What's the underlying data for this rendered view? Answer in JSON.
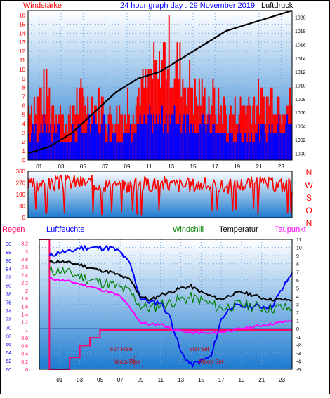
{
  "header": {
    "left_label": "Windstärke",
    "title": "24 hour graph day : 29 November 2019",
    "right_label": "Luftdruck"
  },
  "mid_labels": {
    "compass": [
      "N",
      "W",
      "S",
      "O",
      "N"
    ]
  },
  "bottom_header": {
    "regen": "Regen",
    "luftfeuchte": "Luftfeuchte",
    "windchill": "Windchill",
    "temperatur": "Temperatur",
    "taupunkt": "Taupunkt"
  },
  "x_ticks": [
    "01",
    "03",
    "05",
    "07",
    "09",
    "11",
    "13",
    "15",
    "17",
    "19",
    "21",
    "23"
  ],
  "colors": {
    "frame": "#000000",
    "wind_max": "#ff0000",
    "wind_avg": "#0000ff",
    "pressure": "#000000",
    "direction": "#ff0000",
    "rain": "#ff0066",
    "humidity": "#0000ff",
    "windchill": "#008000",
    "temperature": "#000000",
    "dewpoint": "#ff00ff",
    "header_text": "#ff0000",
    "title_text": "#0000ff",
    "event_text": "#cc0000",
    "sky_top": "#1e7bd0",
    "sky_bottom": "#ffffff"
  },
  "chart_data": [
    {
      "type": "bar",
      "title": "Windstärke / Luftdruck",
      "xlabel": "",
      "ylabel": "Windstärke",
      "y2label": "Luftdruck",
      "x_ticks": [
        "01",
        "03",
        "05",
        "07",
        "09",
        "11",
        "13",
        "15",
        "17",
        "19",
        "21",
        "23"
      ],
      "yticks": [
        "0",
        "1",
        "2",
        "3",
        "4",
        "5",
        "6",
        "7",
        "8",
        "9",
        "10",
        "11",
        "12",
        "13",
        "14",
        "15",
        "16"
      ],
      "y2ticks": [
        "1000",
        "1002",
        "1004",
        "1006",
        "1008",
        "1010",
        "1012",
        "1014",
        "1016",
        "1018",
        "1020"
      ],
      "ylim": [
        0,
        16.5
      ],
      "y2lim": [
        999,
        1021
      ],
      "series": [
        {
          "name": "Windstärke max",
          "kind": "bars",
          "x": [
            0,
            1,
            2,
            3,
            4,
            5,
            6,
            7,
            8,
            9,
            10,
            11,
            12,
            13,
            14,
            15,
            16,
            17,
            18,
            19,
            20,
            21,
            22,
            23
          ],
          "values": [
            9,
            10,
            8,
            6,
            9,
            9,
            8,
            7,
            7,
            9,
            11,
            13,
            16,
            14,
            12,
            10,
            9,
            8,
            7,
            8,
            9,
            9,
            10,
            9
          ]
        },
        {
          "name": "Windstärke mittel",
          "kind": "bars",
          "x": [
            0,
            1,
            2,
            3,
            4,
            5,
            6,
            7,
            8,
            9,
            10,
            11,
            12,
            13,
            14,
            15,
            16,
            17,
            18,
            19,
            20,
            21,
            22,
            23
          ],
          "values": [
            4,
            5,
            4,
            3,
            4,
            5,
            5,
            4,
            3,
            4,
            5,
            6,
            6,
            6,
            6,
            5,
            5,
            4,
            3,
            4,
            4,
            4,
            5,
            5
          ]
        },
        {
          "name": "Luftdruck",
          "kind": "line",
          "x": [
            0,
            2,
            4,
            6,
            8,
            10,
            12,
            14,
            16,
            18,
            20,
            22,
            24
          ],
          "values": [
            1000,
            1001,
            1003,
            1006,
            1009,
            1011,
            1012,
            1014,
            1016,
            1018,
            1019,
            1020,
            1021
          ]
        }
      ]
    },
    {
      "type": "line",
      "title": "Windrichtung",
      "yticks": [
        "0",
        "90",
        "180",
        "270",
        "360"
      ],
      "ylim": [
        0,
        360
      ],
      "series": [
        {
          "name": "Windrichtung",
          "x": [
            0,
            2,
            4,
            6,
            8,
            10,
            12,
            14,
            16,
            18,
            20,
            22,
            24
          ],
          "values": [
            250,
            260,
            280,
            270,
            240,
            260,
            270,
            250,
            260,
            240,
            270,
            260,
            250
          ]
        }
      ]
    },
    {
      "type": "line",
      "title": "Regen / Luftfeuchte / Windchill / Temperatur / Taupunkt",
      "x_ticks": [
        "01",
        "03",
        "05",
        "07",
        "09",
        "11",
        "13",
        "15",
        "17",
        "19",
        "21",
        "23"
      ],
      "y_humidity_ticks": [
        "60",
        "62",
        "64",
        "66",
        "68",
        "70",
        "72",
        "74",
        "76",
        "78",
        "80",
        "82",
        "84",
        "86",
        "88",
        "90"
      ],
      "y_rain_ticks": [
        "0",
        "0.2",
        "0.4",
        "0.6",
        "0.8",
        "1",
        "1.2",
        "1.4",
        "1.6",
        "1.8",
        "2",
        "2.2",
        "2.4",
        "2.6",
        "2.8",
        "3",
        "3.2"
      ],
      "y_temp_ticks": [
        "-5",
        "-4",
        "-3",
        "-2",
        "-1",
        "0",
        "1",
        "2",
        "3",
        "4",
        "5",
        "6",
        "7",
        "8",
        "9",
        "10",
        "11"
      ],
      "humidity_lim": [
        60,
        91
      ],
      "temp_lim": [
        -5,
        11
      ],
      "rain_lim": [
        0,
        3.3
      ],
      "series": [
        {
          "name": "Regen",
          "x": [
            -1,
            0,
            1,
            2,
            3,
            4,
            5,
            6,
            7,
            8,
            9,
            10,
            11,
            12,
            13,
            14,
            15,
            16,
            17,
            18,
            19,
            20,
            21,
            22,
            23,
            24
          ],
          "values": [
            3.3,
            0,
            0,
            0.3,
            0.6,
            0.8,
            1.0,
            1.0,
            1.0,
            1.0,
            1.0,
            1.0,
            1.0,
            1.0,
            1.0,
            1.0,
            1.0,
            1.0,
            1.0,
            1.0,
            1.0,
            1.0,
            1.0,
            1.0,
            1.0,
            1.0
          ]
        },
        {
          "name": "Luftfeuchte",
          "x": [
            0,
            1,
            2,
            3,
            4,
            5,
            6,
            7,
            8,
            9,
            10,
            11,
            12,
            13,
            14,
            15,
            16,
            17,
            18,
            19,
            20,
            21,
            22,
            23,
            24
          ],
          "values": [
            87,
            88,
            88,
            89,
            89,
            89,
            89,
            88,
            85,
            77,
            76,
            76,
            72,
            64,
            61,
            62,
            63,
            72,
            75,
            75,
            75,
            75,
            75,
            79,
            83
          ]
        },
        {
          "name": "Windchill",
          "x": [
            0,
            1,
            2,
            3,
            4,
            5,
            6,
            7,
            8,
            9,
            10,
            11,
            12,
            13,
            14,
            15,
            16,
            17,
            18,
            19,
            20,
            21,
            22,
            23,
            24
          ],
          "values": [
            7,
            7.2,
            6.8,
            6.5,
            6,
            5.8,
            5.5,
            5,
            4.5,
            2.8,
            2.5,
            3,
            3.2,
            3.6,
            3.8,
            3.5,
            3,
            2.5,
            2.8,
            3,
            2.8,
            2.6,
            2.5,
            2.6,
            2.4
          ]
        },
        {
          "name": "Temperatur",
          "x": [
            0,
            1,
            2,
            3,
            4,
            5,
            6,
            7,
            8,
            9,
            10,
            11,
            12,
            13,
            14,
            15,
            16,
            17,
            18,
            19,
            20,
            21,
            22,
            23,
            24
          ],
          "values": [
            8.2,
            8.3,
            8.1,
            7.9,
            7.5,
            7.2,
            7,
            6.5,
            6,
            4,
            3.5,
            4.2,
            4.5,
            5,
            5.2,
            4.5,
            4,
            3.6,
            4.2,
            4.5,
            4.2,
            3.8,
            3.6,
            3.6,
            3.5
          ]
        },
        {
          "name": "Taupunkt",
          "x": [
            0,
            1,
            2,
            3,
            4,
            5,
            6,
            7,
            8,
            9,
            10,
            11,
            12,
            13,
            14,
            15,
            16,
            17,
            18,
            19,
            20,
            21,
            22,
            23,
            24
          ],
          "values": [
            6.2,
            6,
            5.8,
            5.5,
            5.2,
            4.8,
            4.5,
            4,
            2.5,
            0.8,
            0.5,
            0.6,
            0,
            -0.3,
            -0.5,
            -0.5,
            -0.6,
            -0.4,
            -0.2,
            0,
            0.2,
            0.4,
            0.6,
            0.8,
            1.0
          ]
        }
      ],
      "annotations": [
        {
          "label": "Sun Rise",
          "x": 8.4
        },
        {
          "label": "Moon Rise",
          "x": 9.2
        },
        {
          "label": "Sun Set",
          "x": 16.0
        },
        {
          "label": "Moon Set",
          "x": 17.4
        }
      ]
    }
  ]
}
